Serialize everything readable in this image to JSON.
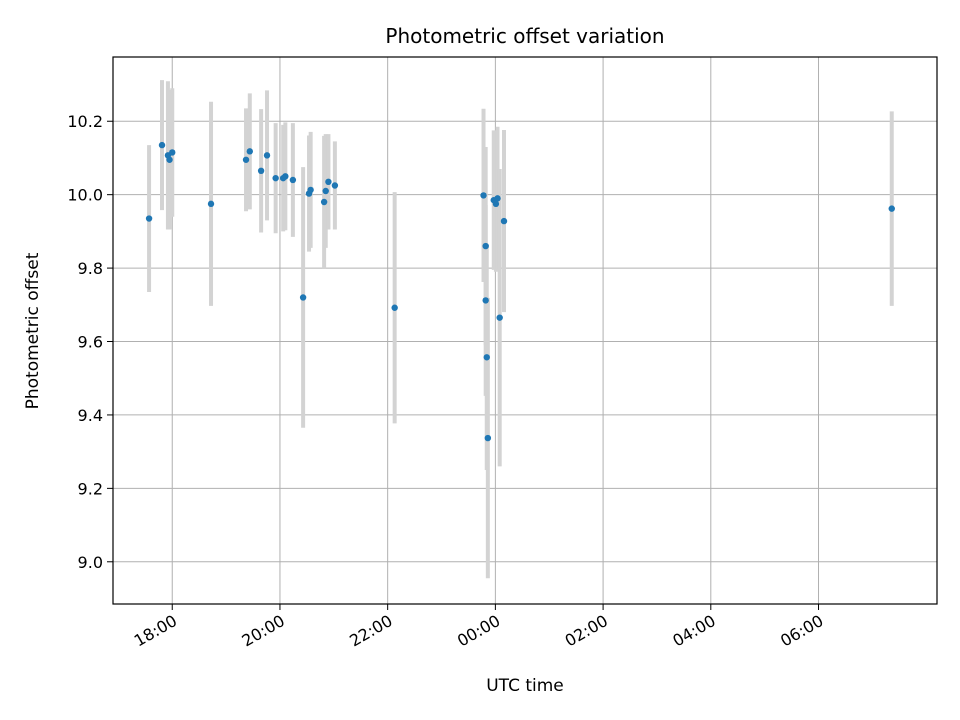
{
  "chart_data": {
    "type": "scatter",
    "title": "Photometric offset variation",
    "xlabel": "UTC time",
    "ylabel": "Photometric offset",
    "x_unit": "hours UTC (values above 24 are after midnight of the next day)",
    "xlim": [
      16.9,
      32.2
    ],
    "ylim": [
      8.885,
      10.375
    ],
    "x_ticks": [
      18,
      20,
      22,
      24,
      26,
      28,
      30
    ],
    "x_tick_labels": [
      "18:00",
      "20:00",
      "22:00",
      "00:00",
      "02:00",
      "04:00",
      "06:00"
    ],
    "y_ticks": [
      9.0,
      9.2,
      9.4,
      9.6,
      9.8,
      10.0,
      10.2
    ],
    "y_tick_labels": [
      "9.0",
      "9.2",
      "9.4",
      "9.6",
      "9.8",
      "10.0",
      "10.2"
    ],
    "grid": true,
    "legend": "none",
    "colors": {
      "point": "#1f77b4",
      "errorbar": "#d3d3d3",
      "grid": "#b0b0b0"
    },
    "points": [
      {
        "x": 17.57,
        "y": 9.935,
        "lo": 9.735,
        "hi": 10.135
      },
      {
        "x": 17.81,
        "y": 10.135,
        "lo": 9.958,
        "hi": 10.312
      },
      {
        "x": 17.92,
        "y": 10.107,
        "lo": 9.905,
        "hi": 10.309
      },
      {
        "x": 17.95,
        "y": 10.095,
        "lo": 9.905,
        "hi": 10.285
      },
      {
        "x": 18.0,
        "y": 10.115,
        "lo": 9.94,
        "hi": 10.29
      },
      {
        "x": 18.72,
        "y": 9.975,
        "lo": 9.697,
        "hi": 10.253
      },
      {
        "x": 19.37,
        "y": 10.095,
        "lo": 9.955,
        "hi": 10.235
      },
      {
        "x": 19.44,
        "y": 10.118,
        "lo": 9.96,
        "hi": 10.276
      },
      {
        "x": 19.65,
        "y": 10.065,
        "lo": 9.897,
        "hi": 10.233
      },
      {
        "x": 19.76,
        "y": 10.107,
        "lo": 9.93,
        "hi": 10.284
      },
      {
        "x": 19.92,
        "y": 10.045,
        "lo": 9.895,
        "hi": 10.195
      },
      {
        "x": 20.1,
        "y": 10.05,
        "lo": 9.903,
        "hi": 10.197
      },
      {
        "x": 20.24,
        "y": 10.04,
        "lo": 9.885,
        "hi": 10.195
      },
      {
        "x": 20.06,
        "y": 10.045,
        "lo": 9.9,
        "hi": 10.19
      },
      {
        "x": 20.43,
        "y": 9.72,
        "lo": 9.365,
        "hi": 10.075
      },
      {
        "x": 20.54,
        "y": 10.003,
        "lo": 9.845,
        "hi": 10.161
      },
      {
        "x": 20.57,
        "y": 10.013,
        "lo": 9.855,
        "hi": 10.171
      },
      {
        "x": 20.82,
        "y": 9.98,
        "lo": 9.8,
        "hi": 10.16
      },
      {
        "x": 20.85,
        "y": 10.01,
        "lo": 9.855,
        "hi": 10.165
      },
      {
        "x": 20.9,
        "y": 10.035,
        "lo": 9.905,
        "hi": 10.165
      },
      {
        "x": 21.02,
        "y": 10.025,
        "lo": 9.905,
        "hi": 10.145
      },
      {
        "x": 22.13,
        "y": 9.692,
        "lo": 9.377,
        "hi": 10.007
      },
      {
        "x": 23.78,
        "y": 9.998,
        "lo": 9.762,
        "hi": 10.234
      },
      {
        "x": 23.82,
        "y": 9.86,
        "lo": 9.59,
        "hi": 10.13
      },
      {
        "x": 23.82,
        "y": 9.712,
        "lo": 9.452,
        "hi": 9.972
      },
      {
        "x": 23.84,
        "y": 9.557,
        "lo": 9.25,
        "hi": 9.864
      },
      {
        "x": 23.86,
        "y": 9.337,
        "lo": 8.955,
        "hi": 9.719
      },
      {
        "x": 23.97,
        "y": 9.985,
        "lo": 9.795,
        "hi": 10.175
      },
      {
        "x": 24.01,
        "y": 9.975,
        "lo": 9.79,
        "hi": 10.16
      },
      {
        "x": 24.04,
        "y": 9.99,
        "lo": 9.795,
        "hi": 10.185
      },
      {
        "x": 24.08,
        "y": 9.665,
        "lo": 9.26,
        "hi": 10.07
      },
      {
        "x": 24.16,
        "y": 9.928,
        "lo": 9.68,
        "hi": 10.176
      },
      {
        "x": 31.36,
        "y": 9.962,
        "lo": 9.697,
        "hi": 10.227
      }
    ]
  }
}
